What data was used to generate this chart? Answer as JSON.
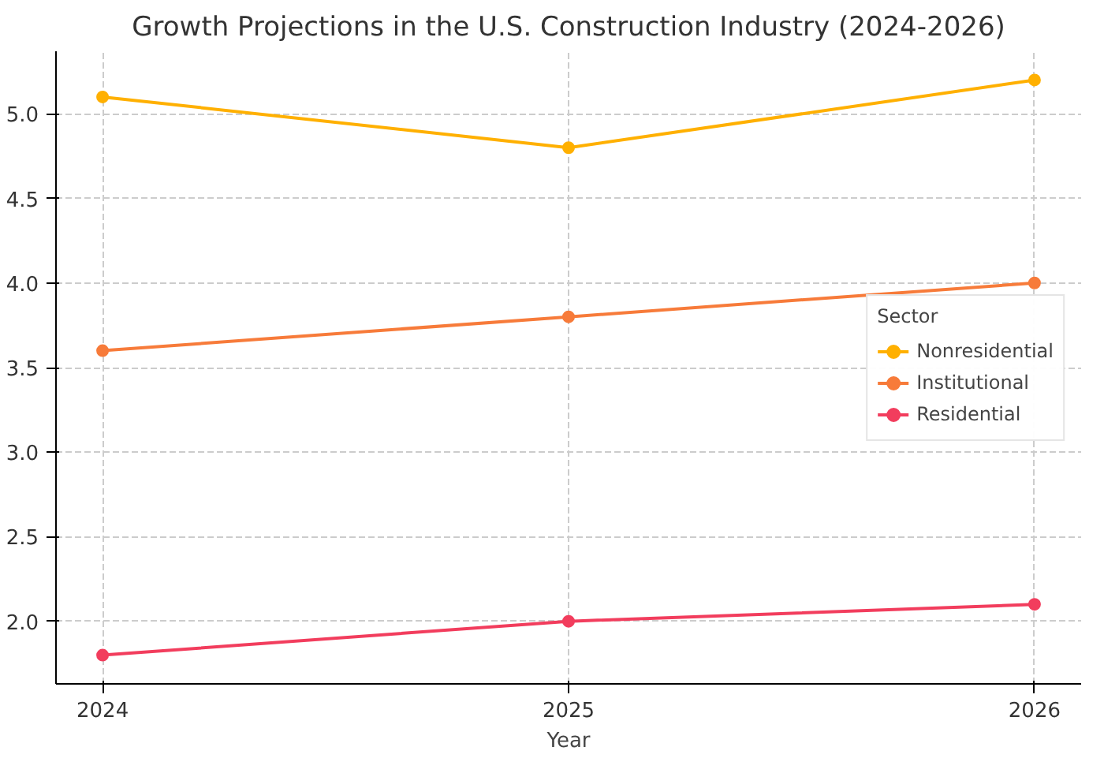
{
  "chart_data": {
    "type": "line",
    "title": "Growth Projections in the U.S. Construction Industry (2024-2026)",
    "xlabel": "Year",
    "legend_title": "Sector",
    "x": [
      2024,
      2025,
      2026
    ],
    "series": [
      {
        "name": "Nonresidential",
        "color": "#ffb000",
        "values": [
          5.1,
          4.8,
          5.2
        ]
      },
      {
        "name": "Institutional",
        "color": "#f77b3a",
        "values": [
          3.6,
          3.8,
          4.0
        ]
      },
      {
        "name": "Residential",
        "color": "#f23d5d",
        "values": [
          1.8,
          2.0,
          2.1
        ]
      }
    ],
    "xlim": [
      2023.9,
      2026.1
    ],
    "xticks": [
      2024,
      2025,
      2026
    ],
    "ylim": [
      1.63,
      5.37
    ],
    "yticks": [
      {
        "value": 2.0,
        "label": "2.0"
      },
      {
        "value": 2.5,
        "label": "2.5"
      },
      {
        "value": 3.0,
        "label": "3.0"
      },
      {
        "value": 3.5,
        "label": "3.5"
      },
      {
        "value": 4.0,
        "label": "4.0"
      },
      {
        "value": 4.5,
        "label": "4.5"
      },
      {
        "value": 5.0,
        "label": "5.0"
      }
    ],
    "grid": true,
    "legend": "right",
    "marker": "circle",
    "line_style": "solid"
  }
}
